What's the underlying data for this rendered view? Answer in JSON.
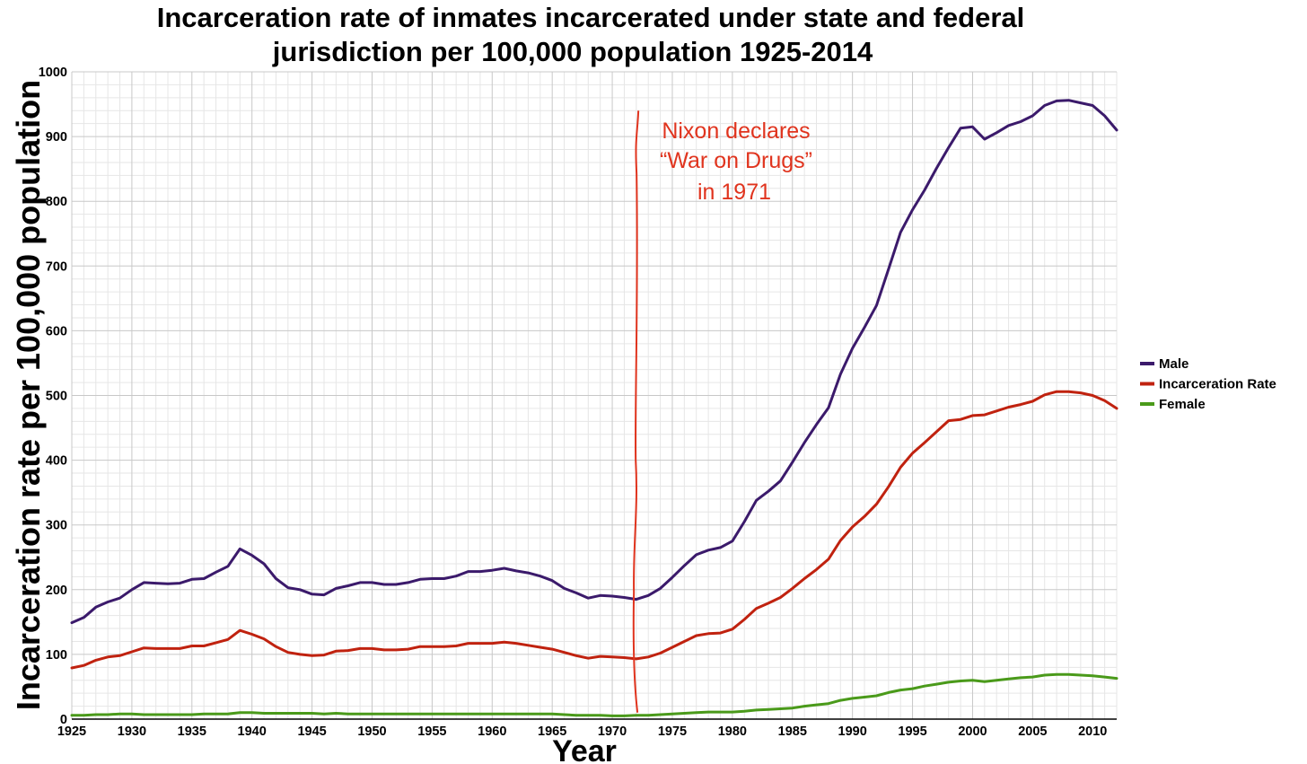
{
  "chart_data": {
    "type": "line",
    "title_lines": [
      "Incarceration rate of inmates incarcerated under state and federal",
      "jurisdiction per 100,000 population 1925-2014"
    ],
    "xlabel": "Year",
    "ylabel": "Incarceration rate per 100,000 population",
    "xlim": [
      1925,
      2012
    ],
    "ylim": [
      0,
      1000
    ],
    "xticks": [
      1925,
      1930,
      1935,
      1940,
      1945,
      1950,
      1955,
      1960,
      1965,
      1970,
      1975,
      1980,
      1985,
      1990,
      1995,
      2000,
      2005,
      2010
    ],
    "yticks": [
      0,
      100,
      200,
      300,
      400,
      500,
      600,
      700,
      800,
      900,
      1000
    ],
    "grid": true,
    "legend_position": "right",
    "series": [
      {
        "name": "Male",
        "color": "#3b1a6b",
        "points": [
          [
            1925,
            149
          ],
          [
            1926,
            157
          ],
          [
            1927,
            173
          ],
          [
            1928,
            181
          ],
          [
            1929,
            187
          ],
          [
            1930,
            200
          ],
          [
            1931,
            211
          ],
          [
            1932,
            210
          ],
          [
            1933,
            209
          ],
          [
            1934,
            210
          ],
          [
            1935,
            216
          ],
          [
            1936,
            217
          ],
          [
            1937,
            227
          ],
          [
            1938,
            236
          ],
          [
            1939,
            263
          ],
          [
            1940,
            253
          ],
          [
            1941,
            240
          ],
          [
            1942,
            217
          ],
          [
            1943,
            203
          ],
          [
            1944,
            200
          ],
          [
            1945,
            193
          ],
          [
            1946,
            192
          ],
          [
            1947,
            202
          ],
          [
            1948,
            206
          ],
          [
            1949,
            211
          ],
          [
            1950,
            211
          ],
          [
            1951,
            208
          ],
          [
            1952,
            208
          ],
          [
            1953,
            211
          ],
          [
            1954,
            216
          ],
          [
            1955,
            217
          ],
          [
            1956,
            217
          ],
          [
            1957,
            221
          ],
          [
            1958,
            228
          ],
          [
            1959,
            228
          ],
          [
            1960,
            230
          ],
          [
            1961,
            233
          ],
          [
            1962,
            229
          ],
          [
            1963,
            226
          ],
          [
            1964,
            221
          ],
          [
            1965,
            214
          ],
          [
            1966,
            202
          ],
          [
            1967,
            195
          ],
          [
            1968,
            187
          ],
          [
            1969,
            191
          ],
          [
            1970,
            190
          ],
          [
            1971,
            188
          ],
          [
            1972,
            185
          ],
          [
            1973,
            191
          ],
          [
            1974,
            202
          ],
          [
            1975,
            219
          ],
          [
            1976,
            237
          ],
          [
            1977,
            254
          ],
          [
            1978,
            261
          ],
          [
            1979,
            265
          ],
          [
            1980,
            275
          ],
          [
            1981,
            305
          ],
          [
            1982,
            338
          ],
          [
            1983,
            352
          ],
          [
            1984,
            368
          ],
          [
            1985,
            397
          ],
          [
            1986,
            427
          ],
          [
            1987,
            455
          ],
          [
            1988,
            481
          ],
          [
            1989,
            533
          ],
          [
            1990,
            573
          ],
          [
            1991,
            605
          ],
          [
            1992,
            639
          ],
          [
            1993,
            695
          ],
          [
            1994,
            752
          ],
          [
            1995,
            787
          ],
          [
            1996,
            817
          ],
          [
            1997,
            851
          ],
          [
            1998,
            883
          ],
          [
            1999,
            913
          ],
          [
            2000,
            915
          ],
          [
            2001,
            896
          ],
          [
            2002,
            906
          ],
          [
            2003,
            917
          ],
          [
            2004,
            923
          ],
          [
            2005,
            932
          ],
          [
            2006,
            948
          ],
          [
            2007,
            955
          ],
          [
            2008,
            956
          ],
          [
            2009,
            952
          ],
          [
            2010,
            948
          ],
          [
            2011,
            932
          ],
          [
            2012,
            910
          ]
        ]
      },
      {
        "name": "Incarceration Rate",
        "color": "#c0220f",
        "points": [
          [
            1925,
            79
          ],
          [
            1926,
            83
          ],
          [
            1927,
            91
          ],
          [
            1928,
            96
          ],
          [
            1929,
            98
          ],
          [
            1930,
            104
          ],
          [
            1931,
            110
          ],
          [
            1932,
            109
          ],
          [
            1933,
            109
          ],
          [
            1934,
            109
          ],
          [
            1935,
            113
          ],
          [
            1936,
            113
          ],
          [
            1937,
            118
          ],
          [
            1938,
            123
          ],
          [
            1939,
            137
          ],
          [
            1940,
            131
          ],
          [
            1941,
            124
          ],
          [
            1942,
            112
          ],
          [
            1943,
            103
          ],
          [
            1944,
            100
          ],
          [
            1945,
            98
          ],
          [
            1946,
            99
          ],
          [
            1947,
            105
          ],
          [
            1948,
            106
          ],
          [
            1949,
            109
          ],
          [
            1950,
            109
          ],
          [
            1951,
            107
          ],
          [
            1952,
            107
          ],
          [
            1953,
            108
          ],
          [
            1954,
            112
          ],
          [
            1955,
            112
          ],
          [
            1956,
            112
          ],
          [
            1957,
            113
          ],
          [
            1958,
            117
          ],
          [
            1959,
            117
          ],
          [
            1960,
            117
          ],
          [
            1961,
            119
          ],
          [
            1962,
            117
          ],
          [
            1963,
            114
          ],
          [
            1964,
            111
          ],
          [
            1965,
            108
          ],
          [
            1966,
            103
          ],
          [
            1967,
            98
          ],
          [
            1968,
            94
          ],
          [
            1969,
            97
          ],
          [
            1970,
            96
          ],
          [
            1971,
            95
          ],
          [
            1972,
            93
          ],
          [
            1973,
            96
          ],
          [
            1974,
            102
          ],
          [
            1975,
            111
          ],
          [
            1976,
            120
          ],
          [
            1977,
            129
          ],
          [
            1978,
            132
          ],
          [
            1979,
            133
          ],
          [
            1980,
            139
          ],
          [
            1981,
            154
          ],
          [
            1982,
            171
          ],
          [
            1983,
            179
          ],
          [
            1984,
            188
          ],
          [
            1985,
            202
          ],
          [
            1986,
            217
          ],
          [
            1987,
            231
          ],
          [
            1988,
            247
          ],
          [
            1989,
            276
          ],
          [
            1990,
            297
          ],
          [
            1991,
            313
          ],
          [
            1992,
            332
          ],
          [
            1993,
            359
          ],
          [
            1994,
            389
          ],
          [
            1995,
            411
          ],
          [
            1996,
            427
          ],
          [
            1997,
            444
          ],
          [
            1998,
            461
          ],
          [
            1999,
            463
          ],
          [
            2000,
            469
          ],
          [
            2001,
            470
          ],
          [
            2002,
            476
          ],
          [
            2003,
            482
          ],
          [
            2004,
            486
          ],
          [
            2005,
            491
          ],
          [
            2006,
            501
          ],
          [
            2007,
            506
          ],
          [
            2008,
            506
          ],
          [
            2009,
            504
          ],
          [
            2010,
            500
          ],
          [
            2011,
            492
          ],
          [
            2012,
            480
          ]
        ]
      },
      {
        "name": "Female",
        "color": "#4a9a1a",
        "points": [
          [
            1925,
            6
          ],
          [
            1926,
            6
          ],
          [
            1927,
            7
          ],
          [
            1928,
            7
          ],
          [
            1929,
            8
          ],
          [
            1930,
            8
          ],
          [
            1931,
            7
          ],
          [
            1932,
            7
          ],
          [
            1933,
            7
          ],
          [
            1934,
            7
          ],
          [
            1935,
            7
          ],
          [
            1936,
            8
          ],
          [
            1937,
            8
          ],
          [
            1938,
            8
          ],
          [
            1939,
            10
          ],
          [
            1940,
            10
          ],
          [
            1941,
            9
          ],
          [
            1942,
            9
          ],
          [
            1943,
            9
          ],
          [
            1944,
            9
          ],
          [
            1945,
            9
          ],
          [
            1946,
            8
          ],
          [
            1947,
            9
          ],
          [
            1948,
            8
          ],
          [
            1949,
            8
          ],
          [
            1950,
            8
          ],
          [
            1951,
            8
          ],
          [
            1952,
            8
          ],
          [
            1953,
            8
          ],
          [
            1954,
            8
          ],
          [
            1955,
            8
          ],
          [
            1956,
            8
          ],
          [
            1957,
            8
          ],
          [
            1958,
            8
          ],
          [
            1959,
            8
          ],
          [
            1960,
            8
          ],
          [
            1961,
            8
          ],
          [
            1962,
            8
          ],
          [
            1963,
            8
          ],
          [
            1964,
            8
          ],
          [
            1965,
            8
          ],
          [
            1966,
            7
          ],
          [
            1967,
            6
          ],
          [
            1968,
            6
          ],
          [
            1969,
            6
          ],
          [
            1970,
            5
          ],
          [
            1971,
            5
          ],
          [
            1972,
            6
          ],
          [
            1973,
            6
          ],
          [
            1974,
            7
          ],
          [
            1975,
            8
          ],
          [
            1976,
            9
          ],
          [
            1977,
            10
          ],
          [
            1978,
            11
          ],
          [
            1979,
            11
          ],
          [
            1980,
            11
          ],
          [
            1981,
            12
          ],
          [
            1982,
            14
          ],
          [
            1983,
            15
          ],
          [
            1984,
            16
          ],
          [
            1985,
            17
          ],
          [
            1986,
            20
          ],
          [
            1987,
            22
          ],
          [
            1988,
            24
          ],
          [
            1989,
            29
          ],
          [
            1990,
            32
          ],
          [
            1991,
            34
          ],
          [
            1992,
            36
          ],
          [
            1993,
            41
          ],
          [
            1994,
            45
          ],
          [
            1995,
            47
          ],
          [
            1996,
            51
          ],
          [
            1997,
            54
          ],
          [
            1998,
            57
          ],
          [
            1999,
            59
          ],
          [
            2000,
            60
          ],
          [
            2001,
            58
          ],
          [
            2002,
            60
          ],
          [
            2003,
            62
          ],
          [
            2004,
            64
          ],
          [
            2005,
            65
          ],
          [
            2006,
            68
          ],
          [
            2007,
            69
          ],
          [
            2008,
            69
          ],
          [
            2009,
            68
          ],
          [
            2010,
            67
          ],
          [
            2011,
            65
          ],
          [
            2012,
            63
          ]
        ]
      }
    ],
    "annotation": {
      "lines": [
        "Nixon declares",
        "“War on Drugs”",
        "in 1971"
      ],
      "color": "#e0341e",
      "marker_year": 1971.8,
      "marker_value_range": [
        10,
        940
      ]
    }
  }
}
